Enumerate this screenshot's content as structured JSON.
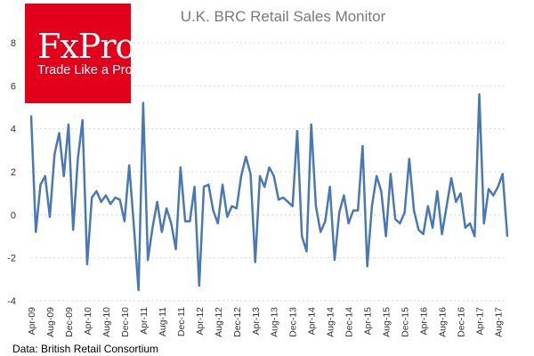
{
  "logo": {
    "brand": "FxPro",
    "tagline": "Trade Like a Pro",
    "background_color": "#e2001a"
  },
  "source": "Data: British Retail Consortium",
  "colors": {
    "series": "#4a78b5",
    "grid": "#d9d9d9"
  },
  "chart_data": {
    "type": "line",
    "title": "U.K. BRC Retail Sales Monitor",
    "xlabel": "",
    "ylabel": "",
    "ylim": [
      -4,
      8
    ],
    "yticks": [
      -4,
      -2,
      0,
      2,
      4,
      6,
      8
    ],
    "grid": true,
    "legend": "none",
    "x_start": "Apr-09",
    "x_end": "Nov-17",
    "x_tick_labels": [
      "Apr-09",
      "Aug-09",
      "Dec-09",
      "Apr-10",
      "Aug-10",
      "Dec-10",
      "Apr-11",
      "Aug-11",
      "Dec-11",
      "Apr-12",
      "Aug-12",
      "Dec-12",
      "Apr-13",
      "Aug-13",
      "Dec-13",
      "Apr-14",
      "Aug-14",
      "Dec-14",
      "Apr-15",
      "Aug-15",
      "Dec-15",
      "Apr-16",
      "Aug-16",
      "Dec-16",
      "Apr-17",
      "Aug-17"
    ],
    "series": [
      {
        "values": [
          4.6,
          -0.8,
          1.4,
          1.8,
          -0.1,
          2.8,
          3.8,
          1.8,
          4.2,
          -0.7,
          2.6,
          4.4,
          -2.3,
          0.8,
          1.1,
          0.6,
          0.9,
          0.5,
          0.8,
          0.7,
          -0.3,
          2.3,
          -0.5,
          -3.5,
          5.2,
          -2.1,
          -0.6,
          0.6,
          -0.8,
          0.3,
          -0.4,
          -1.6,
          2.2,
          -0.3,
          -0.3,
          1.3,
          -3.3,
          1.3,
          1.4,
          0.2,
          -0.4,
          1.4,
          -0.1,
          0.4,
          0.3,
          1.8,
          2.7,
          1.9,
          -2.2,
          1.8,
          1.3,
          2.2,
          1.8,
          0.7,
          0.8,
          0.6,
          0.4,
          3.9,
          -1.0,
          -1.7,
          4.2,
          0.4,
          -0.8,
          -0.3,
          1.3,
          -2.1,
          0.1,
          0.9,
          -0.4,
          0.2,
          0.2,
          3.2,
          -2.4,
          0.4,
          1.8,
          1.1,
          -1.0,
          1.9,
          -0.2,
          -0.4,
          0.1,
          2.6,
          0.2,
          -0.7,
          -0.9,
          0.4,
          -0.6,
          1.1,
          -0.9,
          0.4,
          1.7,
          0.6,
          1.0,
          -0.6,
          -0.4,
          -1.0,
          5.6,
          -0.4,
          1.2,
          0.9,
          1.3,
          1.9,
          -1.0
        ]
      }
    ]
  }
}
